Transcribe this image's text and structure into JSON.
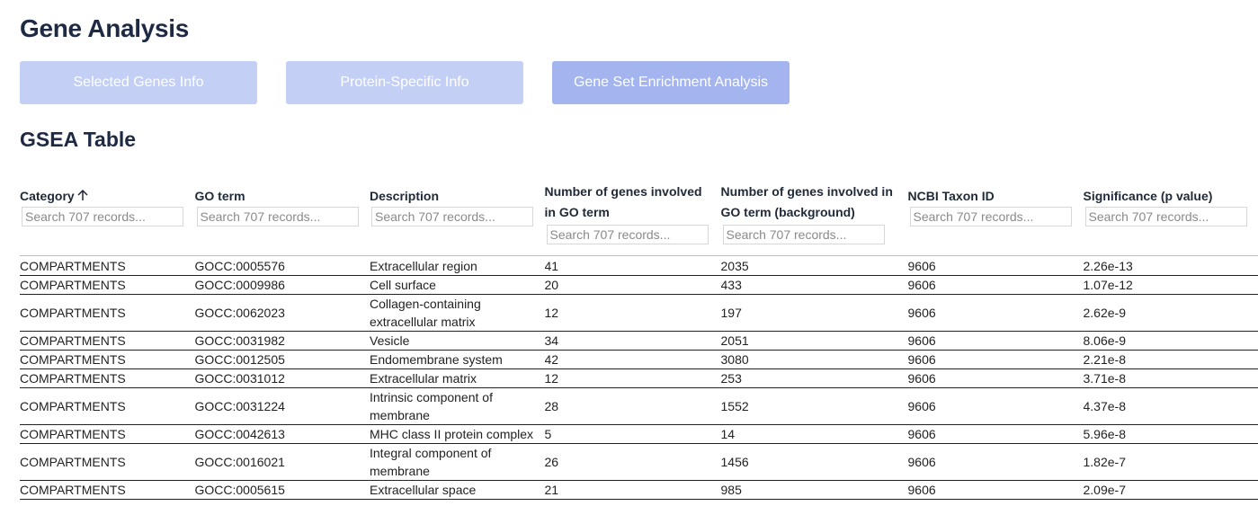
{
  "header": {
    "title": "Gene Analysis"
  },
  "tabs": [
    {
      "label": "Selected Genes Info",
      "active": false
    },
    {
      "label": "Protein-Specific Info",
      "active": false
    },
    {
      "label": "Gene Set Enrichment Analysis",
      "active": true
    }
  ],
  "colors": {
    "tab_inactive": "#c3cff4",
    "tab_active": "#a3b4ef",
    "title": "#1e2a44"
  },
  "table": {
    "title": "GSEA Table",
    "sort_icon": "arrow-up-icon",
    "columns": [
      {
        "label": "Category",
        "placeholder": "Search 707 records..."
      },
      {
        "label": "GO term",
        "placeholder": "Search 707 records..."
      },
      {
        "label": "Description",
        "placeholder": "Search 707 records..."
      },
      {
        "label": "Number of genes involved in GO term",
        "placeholder": "Search 707 records..."
      },
      {
        "label": "Number of genes involved in GO term (background)",
        "placeholder": "Search 707 records..."
      },
      {
        "label": "NCBI Taxon ID",
        "placeholder": "Search 707 records..."
      },
      {
        "label": "Significance (p value)",
        "placeholder": "Search 707 records..."
      }
    ],
    "rows": [
      [
        "COMPARTMENTS",
        "GOCC:0005576",
        "Extracellular region",
        "41",
        "2035",
        "9606",
        "2.26e-13"
      ],
      [
        "COMPARTMENTS",
        "GOCC:0009986",
        "Cell surface",
        "20",
        "433",
        "9606",
        "1.07e-12"
      ],
      [
        "COMPARTMENTS",
        "GOCC:0062023",
        "Collagen-containing extracellular matrix",
        "12",
        "197",
        "9606",
        "2.62e-9"
      ],
      [
        "COMPARTMENTS",
        "GOCC:0031982",
        "Vesicle",
        "34",
        "2051",
        "9606",
        "8.06e-9"
      ],
      [
        "COMPARTMENTS",
        "GOCC:0012505",
        "Endomembrane system",
        "42",
        "3080",
        "9606",
        "2.21e-8"
      ],
      [
        "COMPARTMENTS",
        "GOCC:0031012",
        "Extracellular matrix",
        "12",
        "253",
        "9606",
        "3.71e-8"
      ],
      [
        "COMPARTMENTS",
        "GOCC:0031224",
        "Intrinsic component of membrane",
        "28",
        "1552",
        "9606",
        "4.37e-8"
      ],
      [
        "COMPARTMENTS",
        "GOCC:0042613",
        "MHC class II protein complex",
        "5",
        "14",
        "9606",
        "5.96e-8"
      ],
      [
        "COMPARTMENTS",
        "GOCC:0016021",
        "Integral component of membrane",
        "26",
        "1456",
        "9606",
        "1.82e-7"
      ],
      [
        "COMPARTMENTS",
        "GOCC:0005615",
        "Extracellular space",
        "21",
        "985",
        "9606",
        "2.09e-7"
      ]
    ]
  }
}
